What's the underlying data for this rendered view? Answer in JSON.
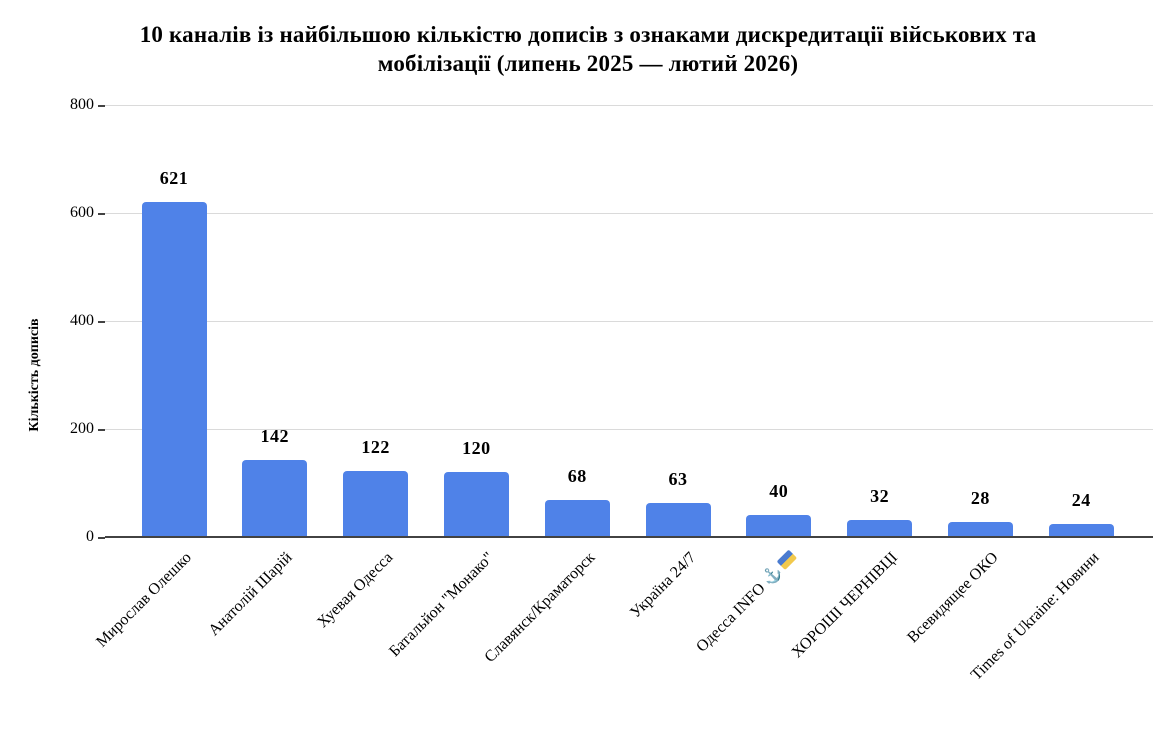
{
  "chart_data": {
    "type": "bar",
    "title": "10 каналів із найбільшою кількістю дописів з ознаками дискредитації військових та мобілізації (липень 2025 — лютий 2026)",
    "title_lines": [
      "10 каналів із найбільшою кількістю дописів з ознаками дискредитації військових та",
      "мобілізації (липень 2025 — лютий 2026)"
    ],
    "xlabel": "",
    "ylabel": "Кількість дописів",
    "categories": [
      "Мирослав Олешко",
      "Анатолій Шарій",
      "Хуевая Одесса",
      "Батальйон \"Монако\"",
      "Славянск/Краматорск",
      "Україна 24/7",
      "Одесса INFO ⚓ 🇺🇦",
      "ХОРОШІ ЧЕРНІВЦІ",
      "Всевидящее ОКО",
      "Times of Ukraine: Новини"
    ],
    "values": [
      621,
      142,
      122,
      120,
      68,
      63,
      40,
      32,
      28,
      24
    ],
    "ylim": [
      0,
      800
    ],
    "yticks": [
      0,
      200,
      400,
      600,
      800
    ],
    "grid": true,
    "legend": false,
    "bar_labels_shown": true,
    "x_label_rotation_deg": 45,
    "colors": {
      "bar": "#4f82e8",
      "gridline": "#dadada",
      "axis": "#424242",
      "text": "#000000",
      "background": "#ffffff"
    }
  }
}
